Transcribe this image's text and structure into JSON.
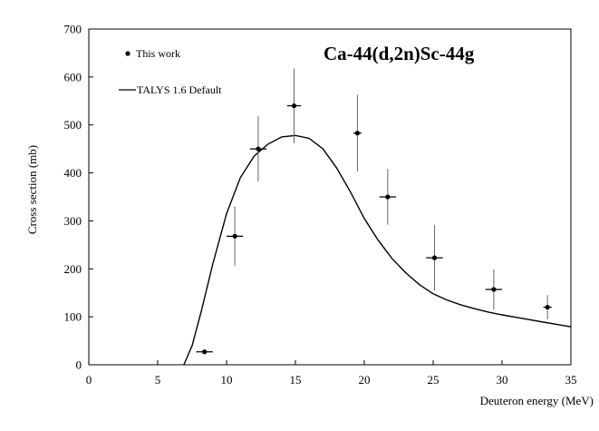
{
  "chart_data": {
    "type": "scatter",
    "title": "Ca-44(d,2n)Sc-44g",
    "xlabel": "Deuteron energy (MeV)",
    "ylabel": "Cross section (mb)",
    "xlim": [
      0,
      35
    ],
    "ylim": [
      0,
      700
    ],
    "xticks": [
      "0",
      "5",
      "10",
      "15",
      "20",
      "25",
      "30",
      "35"
    ],
    "yticks": [
      "0",
      "100",
      "200",
      "300",
      "400",
      "500",
      "600",
      "700"
    ],
    "grid": false,
    "legend_position": "top-left",
    "series": [
      {
        "name": "This work",
        "kind": "points-with-errorbars",
        "points": [
          {
            "x": 8.4,
            "y": 27,
            "xerr": 0.6,
            "yerr": 3
          },
          {
            "x": 10.6,
            "y": 268,
            "xerr": 0.6,
            "yerr": 62
          },
          {
            "x": 12.3,
            "y": 450,
            "xerr": 0.6,
            "yerr": 68
          },
          {
            "x": 14.9,
            "y": 540,
            "xerr": 0.5,
            "yerr": 78
          },
          {
            "x": 19.5,
            "y": 483,
            "xerr": 0.3,
            "yerr": 80
          },
          {
            "x": 21.7,
            "y": 350,
            "xerr": 0.6,
            "yerr": 58
          },
          {
            "x": 25.1,
            "y": 223,
            "xerr": 0.6,
            "yerr": 68
          },
          {
            "x": 29.4,
            "y": 157,
            "xerr": 0.6,
            "yerr": 42
          },
          {
            "x": 33.3,
            "y": 120,
            "xerr": 0.3,
            "yerr": 25
          }
        ]
      },
      {
        "name": "TALYS 1.6 Default",
        "kind": "line",
        "x": [
          6.9,
          7.5,
          8.2,
          9.0,
          10.0,
          11.0,
          12.0,
          13.0,
          14.0,
          15.0,
          16.0,
          17.0,
          18.0,
          19.0,
          20.0,
          21.0,
          22.0,
          23.0,
          24.0,
          25.0,
          26.0,
          27.0,
          28.0,
          29.0,
          30.0,
          31.0,
          32.0,
          33.0,
          34.0,
          35.0
        ],
        "y": [
          0,
          40,
          115,
          210,
          315,
          390,
          435,
          460,
          475,
          478,
          472,
          450,
          410,
          360,
          305,
          260,
          222,
          192,
          167,
          148,
          135,
          125,
          117,
          110,
          104,
          99,
          94,
          89,
          84,
          79
        ]
      }
    ]
  }
}
